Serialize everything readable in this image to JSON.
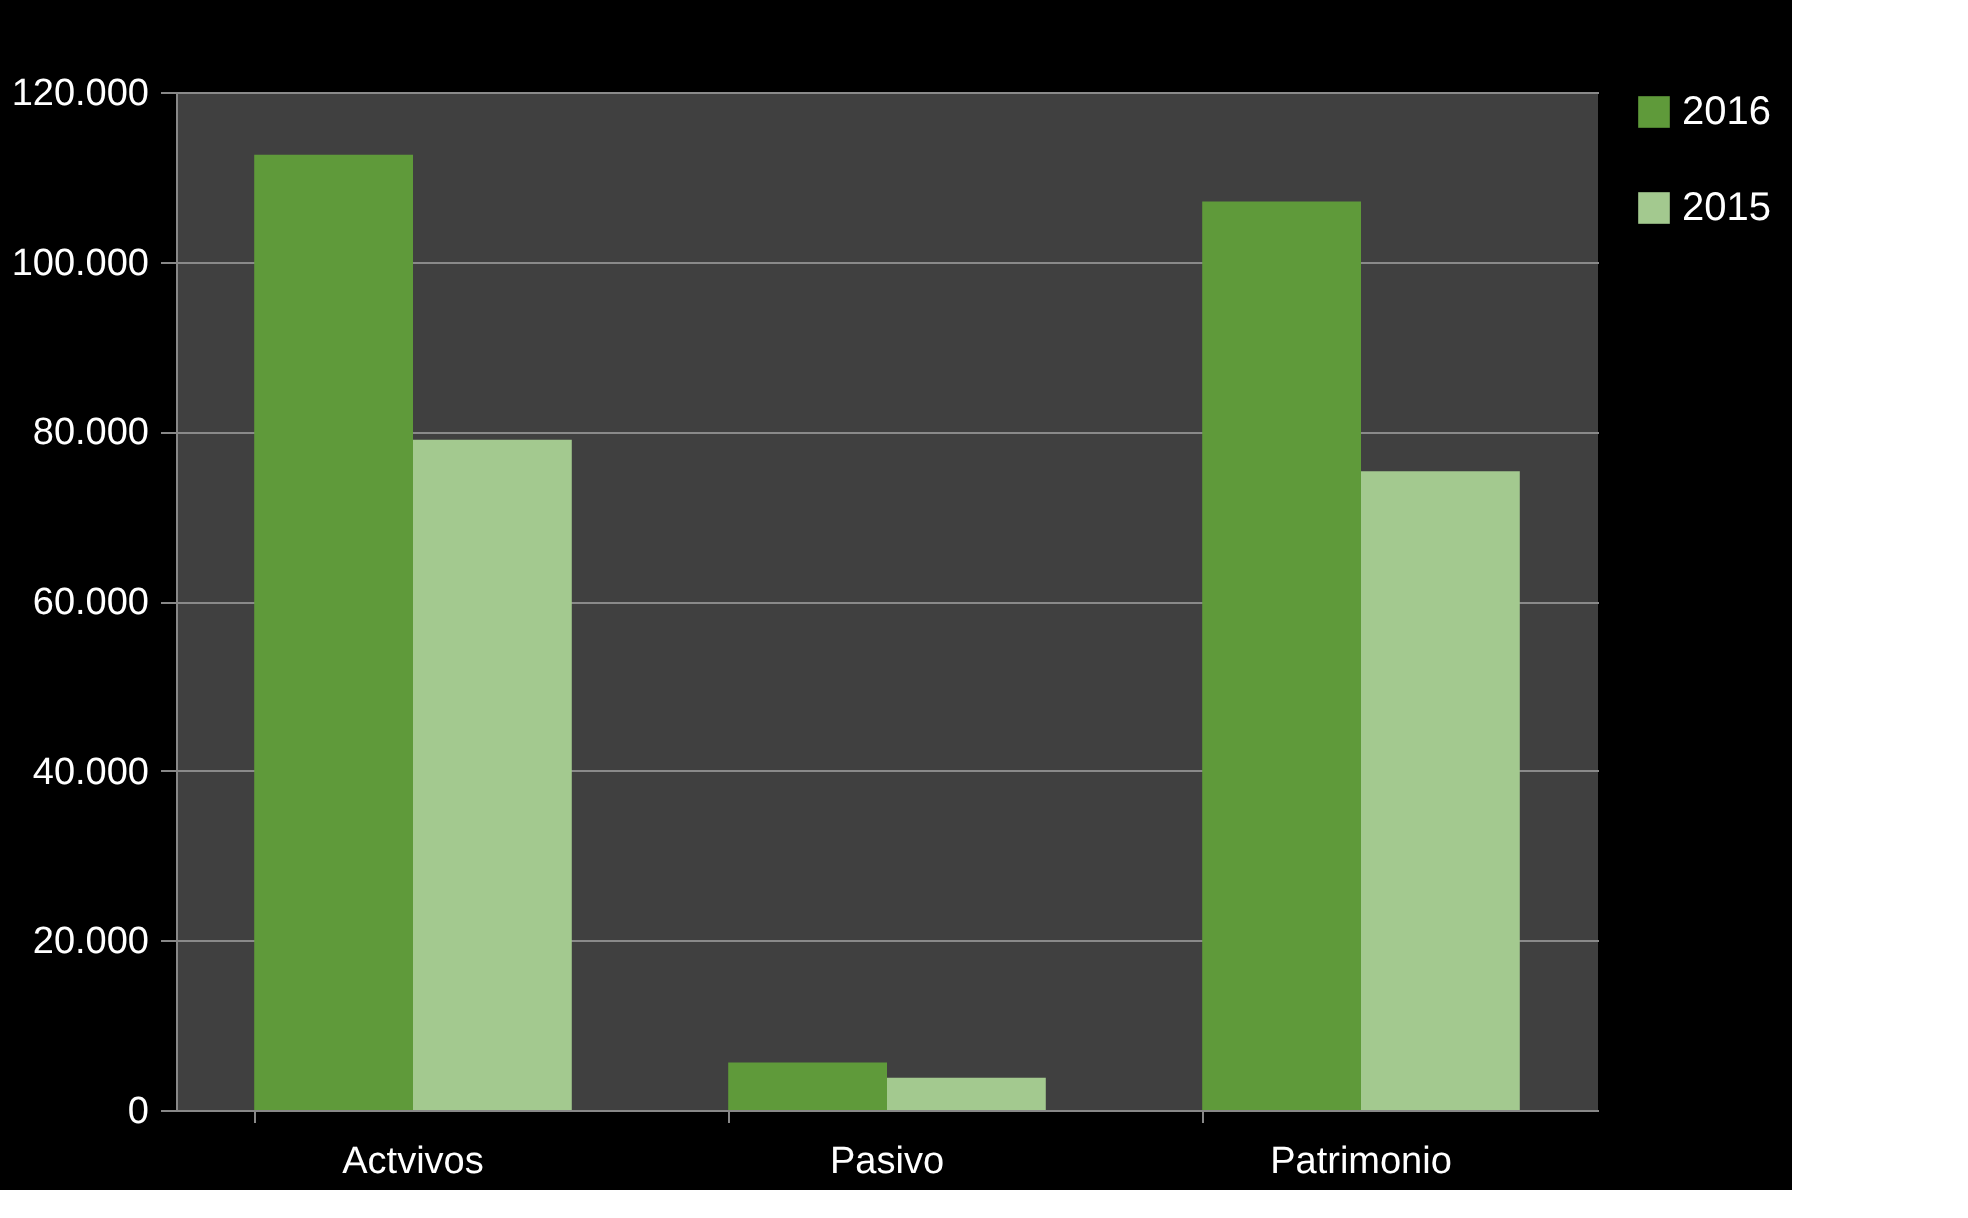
{
  "chart_data": {
    "type": "bar",
    "categories": [
      "Actvivos",
      "Pasivo",
      "Patrimonio"
    ],
    "series": [
      {
        "name": "2016",
        "color": "#5f9a3a",
        "values": [
          112600,
          5600,
          107100
        ]
      },
      {
        "name": "2015",
        "color": "#a3c98f",
        "values": [
          79000,
          3800,
          75300
        ]
      }
    ],
    "ylim": [
      0,
      120000
    ],
    "yticks": [
      0,
      {
        "value": 20000,
        "label": "20.000"
      },
      {
        "value": 40000,
        "label": "40.000"
      },
      {
        "value": 60000,
        "label": "60.000"
      },
      {
        "value": 80000,
        "label": "80.000"
      },
      {
        "value": 100000,
        "label": "100.000"
      },
      {
        "value": 120000,
        "label": "120.000"
      }
    ],
    "grid": "y",
    "legend": "right"
  }
}
